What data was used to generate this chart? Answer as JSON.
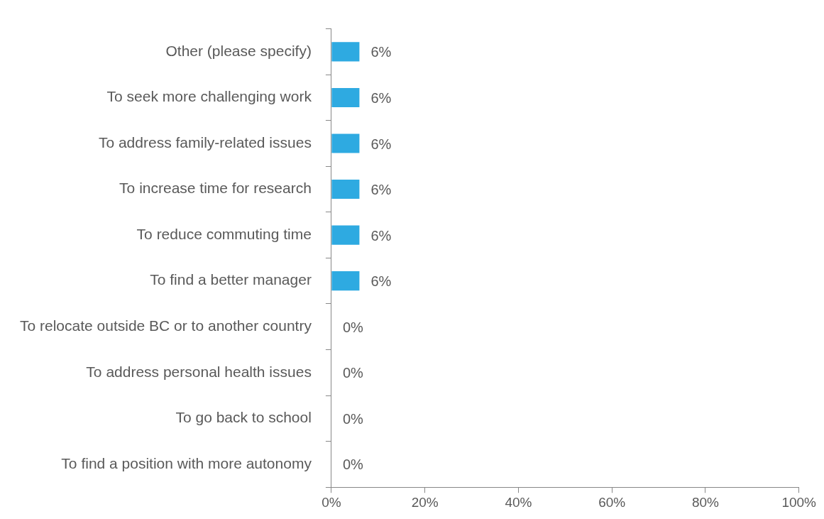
{
  "chart_data": {
    "type": "bar",
    "orientation": "horizontal",
    "categories": [
      "Other (please specify)",
      "To seek more challenging work",
      "To address family-related issues",
      "To increase time for research",
      "To reduce commuting time",
      "To find a better manager",
      "To relocate outside BC or to another country",
      "To address personal health issues",
      "To go back to school",
      "To find a position with more autonomy"
    ],
    "values": [
      6,
      6,
      6,
      6,
      6,
      6,
      0,
      0,
      0,
      0
    ],
    "value_labels": [
      "6%",
      "6%",
      "6%",
      "6%",
      "6%",
      "6%",
      "0%",
      "0%",
      "0%",
      "0%"
    ],
    "color": "#2eaae1",
    "xlim": [
      0,
      100
    ],
    "xticks": [
      {
        "value": 0,
        "label": "0%"
      },
      {
        "value": 20,
        "label": "20%"
      },
      {
        "value": 40,
        "label": "40%"
      },
      {
        "value": 60,
        "label": "60%"
      },
      {
        "value": 80,
        "label": "80%"
      },
      {
        "value": 100,
        "label": "100%"
      }
    ],
    "grid": false,
    "legend": false
  }
}
